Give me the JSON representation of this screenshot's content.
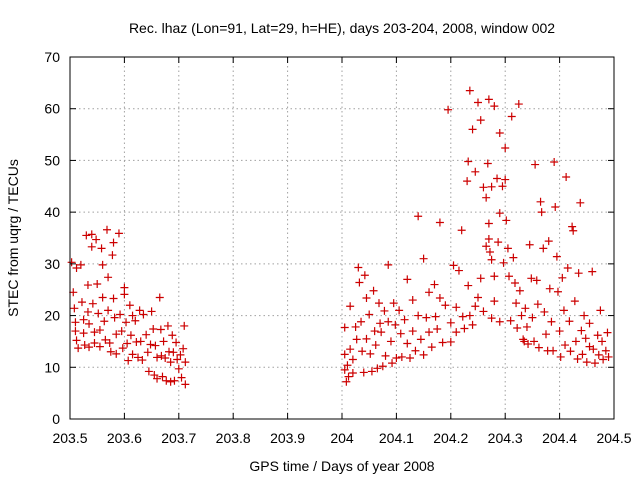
{
  "chart_data": {
    "type": "scatter",
    "title": "Rec. lhaz (Lon=91, Lat=29, h=HE), days 203-204, 2008, window 002",
    "xlabel": "GPS time / Days of year 2008",
    "ylabel": "STEC from uqrg / TECUs",
    "xlim": [
      203.5,
      204.5
    ],
    "ylim": [
      0,
      70
    ],
    "grid": true,
    "marker": "plus",
    "color": "#cc0000",
    "x_ticks": [
      203.5,
      203.6,
      203.7,
      203.8,
      203.9,
      204.0,
      204.1,
      204.2,
      204.3,
      204.4,
      204.5
    ],
    "x_tick_labels": [
      "203.5",
      "203.6",
      "203.7",
      "203.8",
      "203.9",
      "204",
      "204.1",
      "204.2",
      "204.3",
      "204.4",
      "204.5"
    ],
    "y_ticks": [
      0,
      10,
      20,
      30,
      40,
      50,
      60,
      70
    ],
    "y_tick_labels": [
      "0",
      "10",
      "20",
      "30",
      "40",
      "50",
      "60",
      "70"
    ],
    "points": [
      [
        203.503,
        30.3
      ],
      [
        203.506,
        24.5
      ],
      [
        203.508,
        21.4
      ],
      [
        203.51,
        18.7
      ],
      [
        203.51,
        17.0
      ],
      [
        203.512,
        15.2
      ],
      [
        203.515,
        13.7
      ],
      [
        203.512,
        29.2
      ],
      [
        203.52,
        29.8
      ],
      [
        203.522,
        22.6
      ],
      [
        203.525,
        19.2
      ],
      [
        203.525,
        16.6
      ],
      [
        203.527,
        14.3
      ],
      [
        203.53,
        35.5
      ],
      [
        203.533,
        25.9
      ],
      [
        203.533,
        20.7
      ],
      [
        203.535,
        18.4
      ],
      [
        203.535,
        13.9
      ],
      [
        203.54,
        35.7
      ],
      [
        203.54,
        33.3
      ],
      [
        203.542,
        22.3
      ],
      [
        203.545,
        16.8
      ],
      [
        203.545,
        14.7
      ],
      [
        203.548,
        34.7
      ],
      [
        203.55,
        26.1
      ],
      [
        203.552,
        20.4
      ],
      [
        203.555,
        17.2
      ],
      [
        203.555,
        14.0
      ],
      [
        203.558,
        33.0
      ],
      [
        203.56,
        23.5
      ],
      [
        203.56,
        29.8
      ],
      [
        203.563,
        18.9
      ],
      [
        203.565,
        15.3
      ],
      [
        203.568,
        36.6
      ],
      [
        203.57,
        27.4
      ],
      [
        203.57,
        21.0
      ],
      [
        203.573,
        14.7
      ],
      [
        203.575,
        13.0
      ],
      [
        203.578,
        31.7
      ],
      [
        203.58,
        34.1
      ],
      [
        203.58,
        23.3
      ],
      [
        203.582,
        19.6
      ],
      [
        203.585,
        16.4
      ],
      [
        203.585,
        12.6
      ],
      [
        203.59,
        35.9
      ],
      [
        203.592,
        20.2
      ],
      [
        203.595,
        17.0
      ],
      [
        203.597,
        13.7
      ],
      [
        203.6,
        25.4
      ],
      [
        203.6,
        24.1
      ],
      [
        203.603,
        18.7
      ],
      [
        203.605,
        14.6
      ],
      [
        203.607,
        11.3
      ],
      [
        203.61,
        22.0
      ],
      [
        203.612,
        16.2
      ],
      [
        203.615,
        12.5
      ],
      [
        203.615,
        20.0
      ],
      [
        203.62,
        19.0
      ],
      [
        203.622,
        14.9
      ],
      [
        203.625,
        11.9
      ],
      [
        203.628,
        21.0
      ],
      [
        203.63,
        15.0
      ],
      [
        203.633,
        11.4
      ],
      [
        203.635,
        20.2
      ],
      [
        203.64,
        16.3
      ],
      [
        203.643,
        12.9
      ],
      [
        203.645,
        9.2
      ],
      [
        203.648,
        14.4
      ],
      [
        203.65,
        20.8
      ],
      [
        203.653,
        17.4
      ],
      [
        203.655,
        8.5
      ],
      [
        203.657,
        14.2
      ],
      [
        203.66,
        11.9
      ],
      [
        203.66,
        7.8
      ],
      [
        203.665,
        23.5
      ],
      [
        203.667,
        17.3
      ],
      [
        203.668,
        12.2
      ],
      [
        203.67,
        8.2
      ],
      [
        203.672,
        15.0
      ],
      [
        203.675,
        11.8
      ],
      [
        203.677,
        7.4
      ],
      [
        203.68,
        18.0
      ],
      [
        203.682,
        13.0
      ],
      [
        203.685,
        11.0
      ],
      [
        203.685,
        7.2
      ],
      [
        203.688,
        16.2
      ],
      [
        203.69,
        12.9
      ],
      [
        203.692,
        7.4
      ],
      [
        203.695,
        14.8
      ],
      [
        203.697,
        11.5
      ],
      [
        203.7,
        9.7
      ],
      [
        203.703,
        12.4
      ],
      [
        203.705,
        8.0
      ],
      [
        203.708,
        13.6
      ],
      [
        203.71,
        18.0
      ],
      [
        203.712,
        11.0
      ],
      [
        203.712,
        6.7
      ],
      [
        204.005,
        17.7
      ],
      [
        204.005,
        12.5
      ],
      [
        204.005,
        9.5
      ],
      [
        204.008,
        7.2
      ],
      [
        204.01,
        10.4
      ],
      [
        204.012,
        8.2
      ],
      [
        204.015,
        21.8
      ],
      [
        204.015,
        13.5
      ],
      [
        204.02,
        11.5
      ],
      [
        204.02,
        8.9
      ],
      [
        204.025,
        17.8
      ],
      [
        204.027,
        15.4
      ],
      [
        204.03,
        29.3
      ],
      [
        204.032,
        26.4
      ],
      [
        204.035,
        18.8
      ],
      [
        204.037,
        13.1
      ],
      [
        204.04,
        9.0
      ],
      [
        204.042,
        27.8
      ],
      [
        204.045,
        23.4
      ],
      [
        204.045,
        15.5
      ],
      [
        204.05,
        20.2
      ],
      [
        204.052,
        12.6
      ],
      [
        204.055,
        9.2
      ],
      [
        204.058,
        24.8
      ],
      [
        204.06,
        17.0
      ],
      [
        204.062,
        14.3
      ],
      [
        204.065,
        9.8
      ],
      [
        204.068,
        22.4
      ],
      [
        204.07,
        18.5
      ],
      [
        204.072,
        16.8
      ],
      [
        204.075,
        10.2
      ],
      [
        204.078,
        20.9
      ],
      [
        204.08,
        12.2
      ],
      [
        204.085,
        29.8
      ],
      [
        204.085,
        18.8
      ],
      [
        204.09,
        15.0
      ],
      [
        204.092,
        10.8
      ],
      [
        204.095,
        22.4
      ],
      [
        204.098,
        18.2
      ],
      [
        204.1,
        11.8
      ],
      [
        204.105,
        21.0
      ],
      [
        204.108,
        16.5
      ],
      [
        204.11,
        12.0
      ],
      [
        204.115,
        19.2
      ],
      [
        204.12,
        27.0
      ],
      [
        204.12,
        14.6
      ],
      [
        204.125,
        11.8
      ],
      [
        204.13,
        23.0
      ],
      [
        204.13,
        17.0
      ],
      [
        204.135,
        13.2
      ],
      [
        204.14,
        39.2
      ],
      [
        204.14,
        20.0
      ],
      [
        204.145,
        15.4
      ],
      [
        204.15,
        31.0
      ],
      [
        204.15,
        12.4
      ],
      [
        204.155,
        19.6
      ],
      [
        204.16,
        24.5
      ],
      [
        204.16,
        16.8
      ],
      [
        204.165,
        13.9
      ],
      [
        204.17,
        26.0
      ],
      [
        204.172,
        19.8
      ],
      [
        204.175,
        17.4
      ],
      [
        204.18,
        38.0
      ],
      [
        204.18,
        23.4
      ],
      [
        204.185,
        14.8
      ],
      [
        204.19,
        22.0
      ],
      [
        204.195,
        59.8
      ],
      [
        204.2,
        18.6
      ],
      [
        204.2,
        14.9
      ],
      [
        204.205,
        29.7
      ],
      [
        204.21,
        21.6
      ],
      [
        204.21,
        16.8
      ],
      [
        204.215,
        28.7
      ],
      [
        204.22,
        36.5
      ],
      [
        204.222,
        19.8
      ],
      [
        204.225,
        17.5
      ],
      [
        204.23,
        46.0
      ],
      [
        204.232,
        49.8
      ],
      [
        204.232,
        25.8
      ],
      [
        204.235,
        63.5
      ],
      [
        204.235,
        20.0
      ],
      [
        204.24,
        56.0
      ],
      [
        204.24,
        18.2
      ],
      [
        204.245,
        47.8
      ],
      [
        204.245,
        21.8
      ],
      [
        204.25,
        61.2
      ],
      [
        204.25,
        23.5
      ],
      [
        204.255,
        57.8
      ],
      [
        204.255,
        27.2
      ],
      [
        204.26,
        44.8
      ],
      [
        204.26,
        20.8
      ],
      [
        204.265,
        42.8
      ],
      [
        204.265,
        33.4
      ],
      [
        204.268,
        49.4
      ],
      [
        204.27,
        61.8
      ],
      [
        204.27,
        37.8
      ],
      [
        204.27,
        34.8
      ],
      [
        204.272,
        32.3
      ],
      [
        204.275,
        44.9
      ],
      [
        204.275,
        30.8
      ],
      [
        204.275,
        19.5
      ],
      [
        204.28,
        60.5
      ],
      [
        204.28,
        27.6
      ],
      [
        204.28,
        22.8
      ],
      [
        204.285,
        46.5
      ],
      [
        204.287,
        34.2
      ],
      [
        204.29,
        55.3
      ],
      [
        204.29,
        39.8
      ],
      [
        204.29,
        18.8
      ],
      [
        204.295,
        45.0
      ],
      [
        204.297,
        30.2
      ],
      [
        204.3,
        52.4
      ],
      [
        204.3,
        46.3
      ],
      [
        204.302,
        38.4
      ],
      [
        204.305,
        33.0
      ],
      [
        204.307,
        27.6
      ],
      [
        204.31,
        19.0
      ],
      [
        204.312,
        58.5
      ],
      [
        204.315,
        31.2
      ],
      [
        204.318,
        26.3
      ],
      [
        204.32,
        22.4
      ],
      [
        204.322,
        17.6
      ],
      [
        204.325,
        60.9
      ],
      [
        204.327,
        24.8
      ],
      [
        204.33,
        20.0
      ],
      [
        204.333,
        15.4
      ],
      [
        204.335,
        15.0
      ],
      [
        204.337,
        21.4
      ],
      [
        204.34,
        17.8
      ],
      [
        204.342,
        14.5
      ],
      [
        204.345,
        33.7
      ],
      [
        204.348,
        27.2
      ],
      [
        204.35,
        19.6
      ],
      [
        204.353,
        15.0
      ],
      [
        204.355,
        49.2
      ],
      [
        204.358,
        26.8
      ],
      [
        204.36,
        22.2
      ],
      [
        204.362,
        13.8
      ],
      [
        204.365,
        42.0
      ],
      [
        204.367,
        40.0
      ],
      [
        204.37,
        33.0
      ],
      [
        204.372,
        20.7
      ],
      [
        204.375,
        16.4
      ],
      [
        204.378,
        13.2
      ],
      [
        204.38,
        34.4
      ],
      [
        204.382,
        25.2
      ],
      [
        204.385,
        18.8
      ],
      [
        204.388,
        13.2
      ],
      [
        204.39,
        49.7
      ],
      [
        204.392,
        41.0
      ],
      [
        204.395,
        31.4
      ],
      [
        204.397,
        24.6
      ],
      [
        204.4,
        17.0
      ],
      [
        204.402,
        12.0
      ],
      [
        204.405,
        27.3
      ],
      [
        204.408,
        21.0
      ],
      [
        204.41,
        14.3
      ],
      [
        204.412,
        46.8
      ],
      [
        204.415,
        29.2
      ],
      [
        204.418,
        18.9
      ],
      [
        204.42,
        13.1
      ],
      [
        204.423,
        37.2
      ],
      [
        204.425,
        36.4
      ],
      [
        204.428,
        22.8
      ],
      [
        204.43,
        15.0
      ],
      [
        204.433,
        11.6
      ],
      [
        204.435,
        28.2
      ],
      [
        204.438,
        41.8
      ],
      [
        204.44,
        17.1
      ],
      [
        204.442,
        12.5
      ],
      [
        204.445,
        20.0
      ],
      [
        204.448,
        15.6
      ],
      [
        204.45,
        11.0
      ],
      [
        204.455,
        18.5
      ],
      [
        204.455,
        14.0
      ],
      [
        204.46,
        28.5
      ],
      [
        204.462,
        13.5
      ],
      [
        204.465,
        10.8
      ],
      [
        204.47,
        16.2
      ],
      [
        204.472,
        12.4
      ],
      [
        204.475,
        21.0
      ],
      [
        204.478,
        15.0
      ],
      [
        204.48,
        11.5
      ],
      [
        204.485,
        13.2
      ],
      [
        204.488,
        16.7
      ],
      [
        204.49,
        12.0
      ]
    ]
  }
}
